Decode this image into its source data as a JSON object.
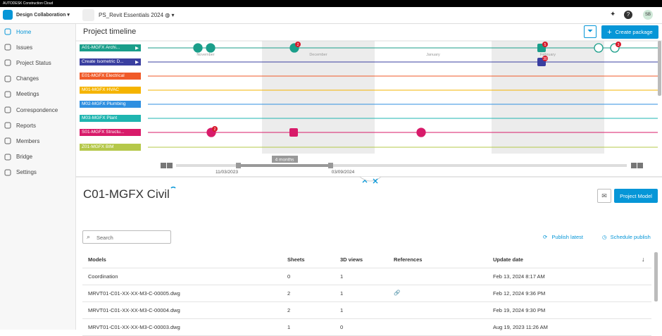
{
  "brand": "AUTODESK Construction Cloud",
  "header": {
    "product": "Design Collaboration",
    "project": "PS_Revit Essentials 2024",
    "avatar": "SB"
  },
  "sidebar": [
    "Home",
    "Issues",
    "Project Status",
    "Changes",
    "Meetings",
    "Correspondence",
    "Reports",
    "Members",
    "Bridge",
    "Settings"
  ],
  "timeline": {
    "title": "Project timeline",
    "create_button": "Create package",
    "months": [
      "November",
      "December",
      "January",
      "February"
    ],
    "rows": [
      "A01-MGFX Archi...",
      "Create Isometric D...",
      "E01-MGFX Electrical",
      "M01-MGFX HVAC",
      "M02-MGFX Plumbing",
      "M03-MGFX Plant",
      "S01-MGFX Structu...",
      "Z01-MGFX BIM"
    ],
    "badges": [
      "2",
      "5",
      "3",
      "30",
      "2"
    ],
    "range_label": "4 months",
    "range_start": "11/03/2023",
    "range_end": "03/09/2024"
  },
  "package": {
    "title": "C01-MGFX Civil",
    "project_model_button": "Project Model",
    "search_placeholder": "Search",
    "publish_latest": "Publish latest",
    "schedule_publish": "Schedule publish"
  },
  "table": {
    "headers": [
      "Models",
      "Sheets",
      "3D views",
      "References",
      "Update date"
    ],
    "rows": [
      [
        "Coordination",
        "0",
        "1",
        "",
        "Feb 13, 2024 8:17 AM"
      ],
      [
        "MRVT01-C01-XX-XX-M3-C-00005.dwg",
        "2",
        "1",
        "link",
        "Feb 12, 2024 9:36 PM"
      ],
      [
        "MRVT01-C01-XX-XX-M3-C-00004.dwg",
        "2",
        "1",
        "",
        "Feb 19, 2024 9:30 PM"
      ],
      [
        "MRVT01-C01-XX-XX-M3-C-00003.dwg",
        "1",
        "0",
        "",
        "Aug 19, 2023 11:26 AM"
      ]
    ]
  }
}
